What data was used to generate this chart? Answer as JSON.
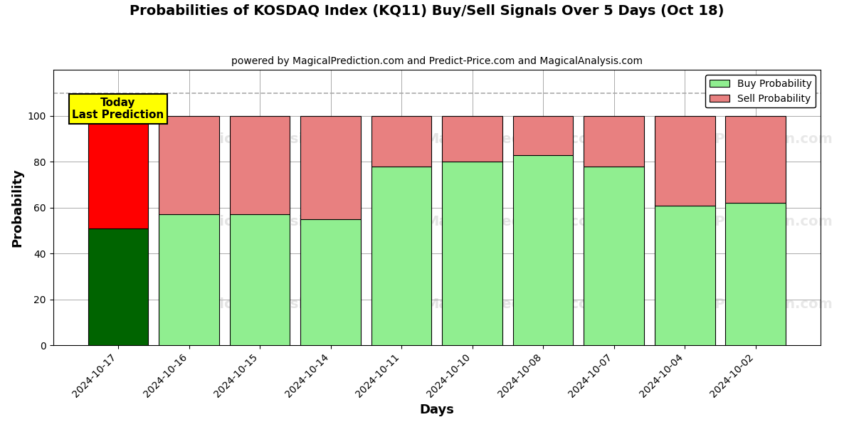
{
  "title": "Probabilities of KOSDAQ Index (KQ11) Buy/Sell Signals Over 5 Days (Oct 18)",
  "subtitle": "powered by MagicalPrediction.com and Predict-Price.com and MagicalAnalysis.com",
  "xlabel": "Days",
  "ylabel": "Probability",
  "categories": [
    "2024-10-17",
    "2024-10-16",
    "2024-10-15",
    "2024-10-14",
    "2024-10-11",
    "2024-10-10",
    "2024-10-08",
    "2024-10-07",
    "2024-10-04",
    "2024-10-02"
  ],
  "buy_probs": [
    51,
    57,
    57,
    55,
    78,
    80,
    83,
    78,
    61,
    62
  ],
  "sell_probs": [
    49,
    43,
    43,
    45,
    22,
    20,
    17,
    22,
    39,
    38
  ],
  "buy_colors": [
    "#006400",
    "#90EE90",
    "#90EE90",
    "#90EE90",
    "#90EE90",
    "#90EE90",
    "#90EE90",
    "#90EE90",
    "#90EE90",
    "#90EE90"
  ],
  "sell_colors": [
    "#FF0000",
    "#E88080",
    "#E88080",
    "#E88080",
    "#E88080",
    "#E88080",
    "#E88080",
    "#E88080",
    "#E88080",
    "#E88080"
  ],
  "today_label": "Today\nLast Prediction",
  "dashed_line_y": 110,
  "ylim": [
    0,
    120
  ],
  "yticks": [
    0,
    20,
    40,
    60,
    80,
    100
  ],
  "legend_buy_color": "#90EE90",
  "legend_sell_color": "#E88080",
  "background_color": "#ffffff",
  "grid_color": "#aaaaaa",
  "bar_edge_color": "#000000",
  "bar_width": 0.85,
  "figsize": [
    12,
    6
  ],
  "dpi": 100
}
